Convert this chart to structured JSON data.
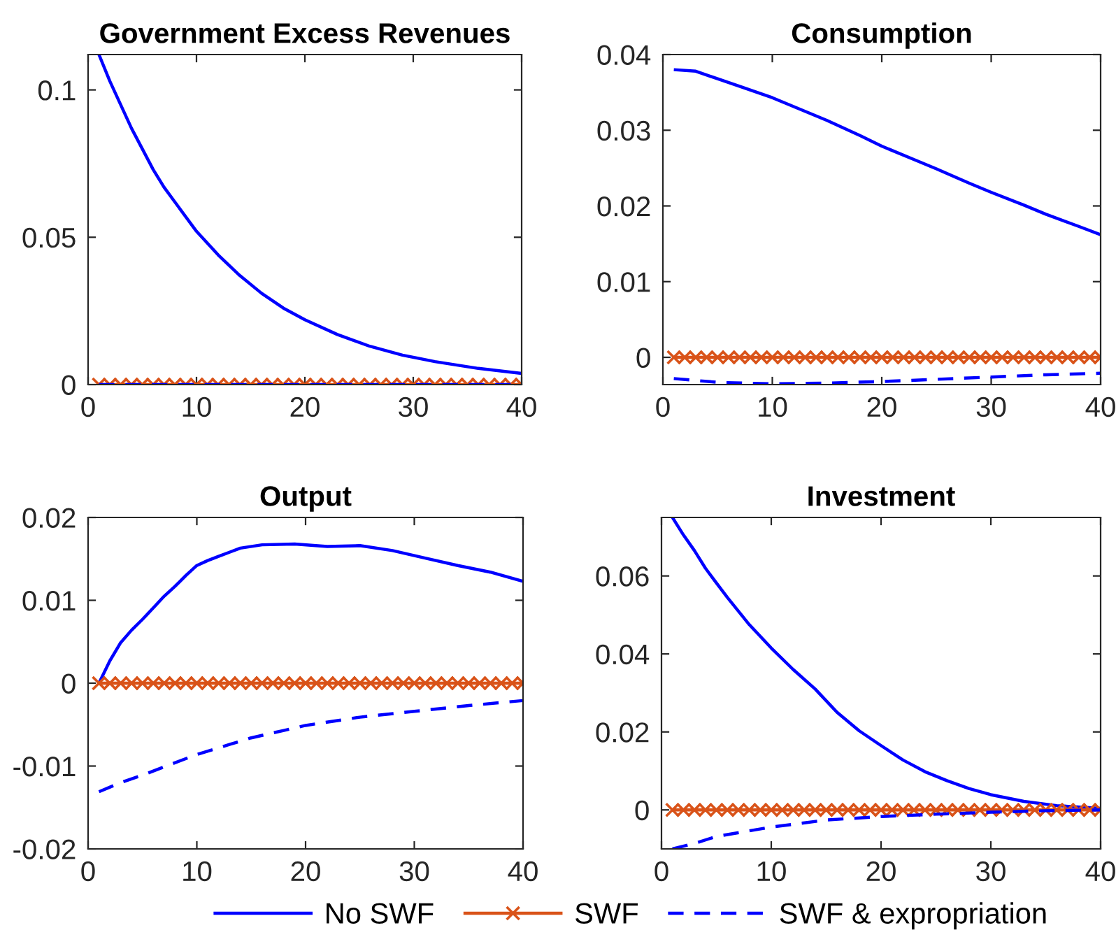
{
  "chart_data": [
    {
      "type": "line",
      "title": "Government Excess Revenues",
      "xlim": [
        0,
        40
      ],
      "xticks": [
        0,
        10,
        20,
        30,
        40
      ],
      "ylim": [
        0,
        0.112
      ],
      "yticks": [
        0,
        0.05,
        0.1
      ],
      "grid": false,
      "series": [
        {
          "color": "#0000ff",
          "line_style": "solid",
          "marker": "none",
          "x": [
            1,
            2,
            3,
            4,
            5,
            6,
            7,
            8,
            10,
            12,
            14,
            16,
            18,
            20,
            23,
            26,
            29,
            32,
            36,
            40
          ],
          "values": [
            0.112,
            0.103,
            0.095,
            0.087,
            0.08,
            0.073,
            0.067,
            0.062,
            0.052,
            0.044,
            0.037,
            0.031,
            0.026,
            0.022,
            0.017,
            0.013,
            0.01,
            0.0078,
            0.0055,
            0.0038
          ]
        },
        {
          "color": "#d95319",
          "line_style": "solid",
          "marker": "cross",
          "x": [
            1,
            2,
            3,
            4,
            5,
            6,
            7,
            8,
            9,
            10,
            11,
            12,
            13,
            14,
            15,
            16,
            17,
            18,
            19,
            20,
            21,
            22,
            23,
            24,
            25,
            26,
            27,
            28,
            29,
            30,
            31,
            32,
            33,
            34,
            35,
            36,
            37,
            38,
            39,
            40
          ],
          "values": [
            0,
            0,
            0,
            0,
            0,
            0,
            0,
            0,
            0,
            0,
            0,
            0,
            0,
            0,
            0,
            0,
            0,
            0,
            0,
            0,
            0,
            0,
            0,
            0,
            0,
            0,
            0,
            0,
            0,
            0,
            0,
            0,
            0,
            0,
            0,
            0,
            0,
            0,
            0,
            0
          ]
        },
        {
          "color": "#0000ff",
          "line_style": "dashed",
          "marker": "none",
          "x": [
            1,
            40
          ],
          "values": [
            0,
            0
          ]
        }
      ]
    },
    {
      "type": "line",
      "title": "Consumption",
      "xlim": [
        0,
        40
      ],
      "xticks": [
        0,
        10,
        20,
        30,
        40
      ],
      "ylim": [
        -0.0036,
        0.04
      ],
      "yticks": [
        0,
        0.01,
        0.02,
        0.03,
        0.04
      ],
      "grid": false,
      "series": [
        {
          "color": "#0000ff",
          "line_style": "solid",
          "marker": "none",
          "x": [
            1,
            3,
            5,
            7,
            10,
            13,
            15,
            18,
            20,
            23,
            25,
            28,
            30,
            33,
            35,
            38,
            40
          ],
          "values": [
            0.038,
            0.0378,
            0.0368,
            0.0358,
            0.0343,
            0.0325,
            0.0313,
            0.0293,
            0.0279,
            0.0261,
            0.0249,
            0.023,
            0.0218,
            0.0201,
            0.0189,
            0.0173,
            0.0162
          ]
        },
        {
          "color": "#d95319",
          "line_style": "solid",
          "marker": "cross",
          "x": [
            1,
            2,
            3,
            4,
            5,
            6,
            7,
            8,
            9,
            10,
            11,
            12,
            13,
            14,
            15,
            16,
            17,
            18,
            19,
            20,
            21,
            22,
            23,
            24,
            25,
            26,
            27,
            28,
            29,
            30,
            31,
            32,
            33,
            34,
            35,
            36,
            37,
            38,
            39,
            40
          ],
          "values": [
            0,
            0,
            0,
            0,
            0,
            0,
            0,
            0,
            0,
            0,
            0,
            0,
            0,
            0,
            0,
            0,
            0,
            0,
            0,
            0,
            0,
            0,
            0,
            0,
            0,
            0,
            0,
            0,
            0,
            0,
            0,
            0,
            0,
            0,
            0,
            0,
            0,
            0,
            0,
            0
          ]
        },
        {
          "color": "#0000ff",
          "line_style": "dashed",
          "marker": "none",
          "x": [
            1,
            5,
            10,
            15,
            20,
            25,
            30,
            35,
            40
          ],
          "values": [
            -0.0028,
            -0.0033,
            -0.0035,
            -0.0034,
            -0.0032,
            -0.0029,
            -0.0026,
            -0.0023,
            -0.0021
          ]
        }
      ]
    },
    {
      "type": "line",
      "title": "Output",
      "xlim": [
        0,
        40
      ],
      "xticks": [
        0,
        10,
        20,
        30,
        40
      ],
      "ylim": [
        -0.02,
        0.02
      ],
      "yticks": [
        -0.02,
        -0.01,
        0,
        0.01,
        0.02
      ],
      "grid": false,
      "series": [
        {
          "color": "#0000ff",
          "line_style": "solid",
          "marker": "none",
          "x": [
            1,
            2,
            3,
            4,
            5,
            6,
            7,
            8,
            9,
            10,
            11,
            12,
            13,
            14,
            16,
            19,
            22,
            25,
            28,
            31,
            34,
            37,
            40
          ],
          "values": [
            0,
            0.0027,
            0.0049,
            0.0064,
            0.0077,
            0.0091,
            0.0105,
            0.0117,
            0.013,
            0.0142,
            0.0148,
            0.0153,
            0.0158,
            0.0163,
            0.0167,
            0.0168,
            0.0165,
            0.0166,
            0.016,
            0.0151,
            0.0142,
            0.0134,
            0.0123
          ]
        },
        {
          "color": "#d95319",
          "line_style": "solid",
          "marker": "cross",
          "x": [
            1,
            2,
            3,
            4,
            5,
            6,
            7,
            8,
            9,
            10,
            11,
            12,
            13,
            14,
            15,
            16,
            17,
            18,
            19,
            20,
            21,
            22,
            23,
            24,
            25,
            26,
            27,
            28,
            29,
            30,
            31,
            32,
            33,
            34,
            35,
            36,
            37,
            38,
            39,
            40
          ],
          "values": [
            0,
            0,
            0,
            0,
            0,
            0,
            0,
            0,
            0,
            0,
            0,
            0,
            0,
            0,
            0,
            0,
            0,
            0,
            0,
            0,
            0,
            0,
            0,
            0,
            0,
            0,
            0,
            0,
            0,
            0,
            0,
            0,
            0,
            0,
            0,
            0,
            0,
            0,
            0,
            0
          ]
        },
        {
          "color": "#0000ff",
          "line_style": "dashed",
          "marker": "none",
          "x": [
            1,
            3,
            5,
            7,
            10,
            13,
            15,
            18,
            20,
            25,
            30,
            35,
            40
          ],
          "values": [
            -0.0131,
            -0.012,
            -0.0111,
            -0.0101,
            -0.0086,
            -0.0074,
            -0.0066,
            -0.0057,
            -0.0051,
            -0.0041,
            -0.0034,
            -0.0027,
            -0.0021
          ]
        }
      ]
    },
    {
      "type": "line",
      "title": "Investment",
      "xlim": [
        0,
        40
      ],
      "xticks": [
        0,
        10,
        20,
        30,
        40
      ],
      "ylim": [
        -0.01,
        0.075
      ],
      "yticks": [
        0,
        0.02,
        0.04,
        0.06
      ],
      "legend": "bottom",
      "grid": false,
      "series": [
        {
          "name": "No SWF",
          "color": "#0000ff",
          "line_style": "solid",
          "marker": "none",
          "x": [
            1,
            2,
            3,
            4,
            5,
            6,
            7,
            8,
            10,
            12,
            14,
            16,
            18,
            20,
            22,
            24,
            26,
            28,
            30,
            33,
            36,
            40
          ],
          "values": [
            0.075,
            0.0705,
            0.0665,
            0.062,
            0.0582,
            0.0545,
            0.051,
            0.0475,
            0.0415,
            0.036,
            0.031,
            0.025,
            0.0203,
            0.0165,
            0.0128,
            0.0098,
            0.0075,
            0.0055,
            0.0039,
            0.0022,
            0.0011,
            0.0004
          ]
        },
        {
          "name": "SWF",
          "color": "#d95319",
          "line_style": "solid",
          "marker": "cross",
          "x": [
            1,
            2,
            3,
            4,
            5,
            6,
            7,
            8,
            9,
            10,
            11,
            12,
            13,
            14,
            15,
            16,
            17,
            18,
            19,
            20,
            21,
            22,
            23,
            24,
            25,
            26,
            27,
            28,
            29,
            30,
            31,
            32,
            33,
            34,
            35,
            36,
            37,
            38,
            39,
            40
          ],
          "values": [
            0,
            0,
            0,
            0,
            0,
            0,
            0,
            0,
            0,
            0,
            0,
            0,
            0,
            0,
            0,
            0,
            0,
            0,
            0,
            0,
            0,
            0,
            0,
            0,
            0,
            0,
            0,
            0,
            0,
            0,
            0,
            0,
            0,
            0,
            0,
            0,
            0,
            0,
            0,
            0
          ]
        },
        {
          "name": "SWF & expropriation",
          "color": "#0000ff",
          "line_style": "dashed",
          "marker": "none",
          "x": [
            1,
            3,
            5,
            10,
            15,
            20,
            25,
            30,
            35,
            40
          ],
          "values": [
            -0.01,
            -0.0086,
            -0.0068,
            -0.0044,
            -0.0026,
            -0.0017,
            -0.0011,
            -0.0006,
            -0.0002,
            0
          ]
        }
      ]
    }
  ]
}
